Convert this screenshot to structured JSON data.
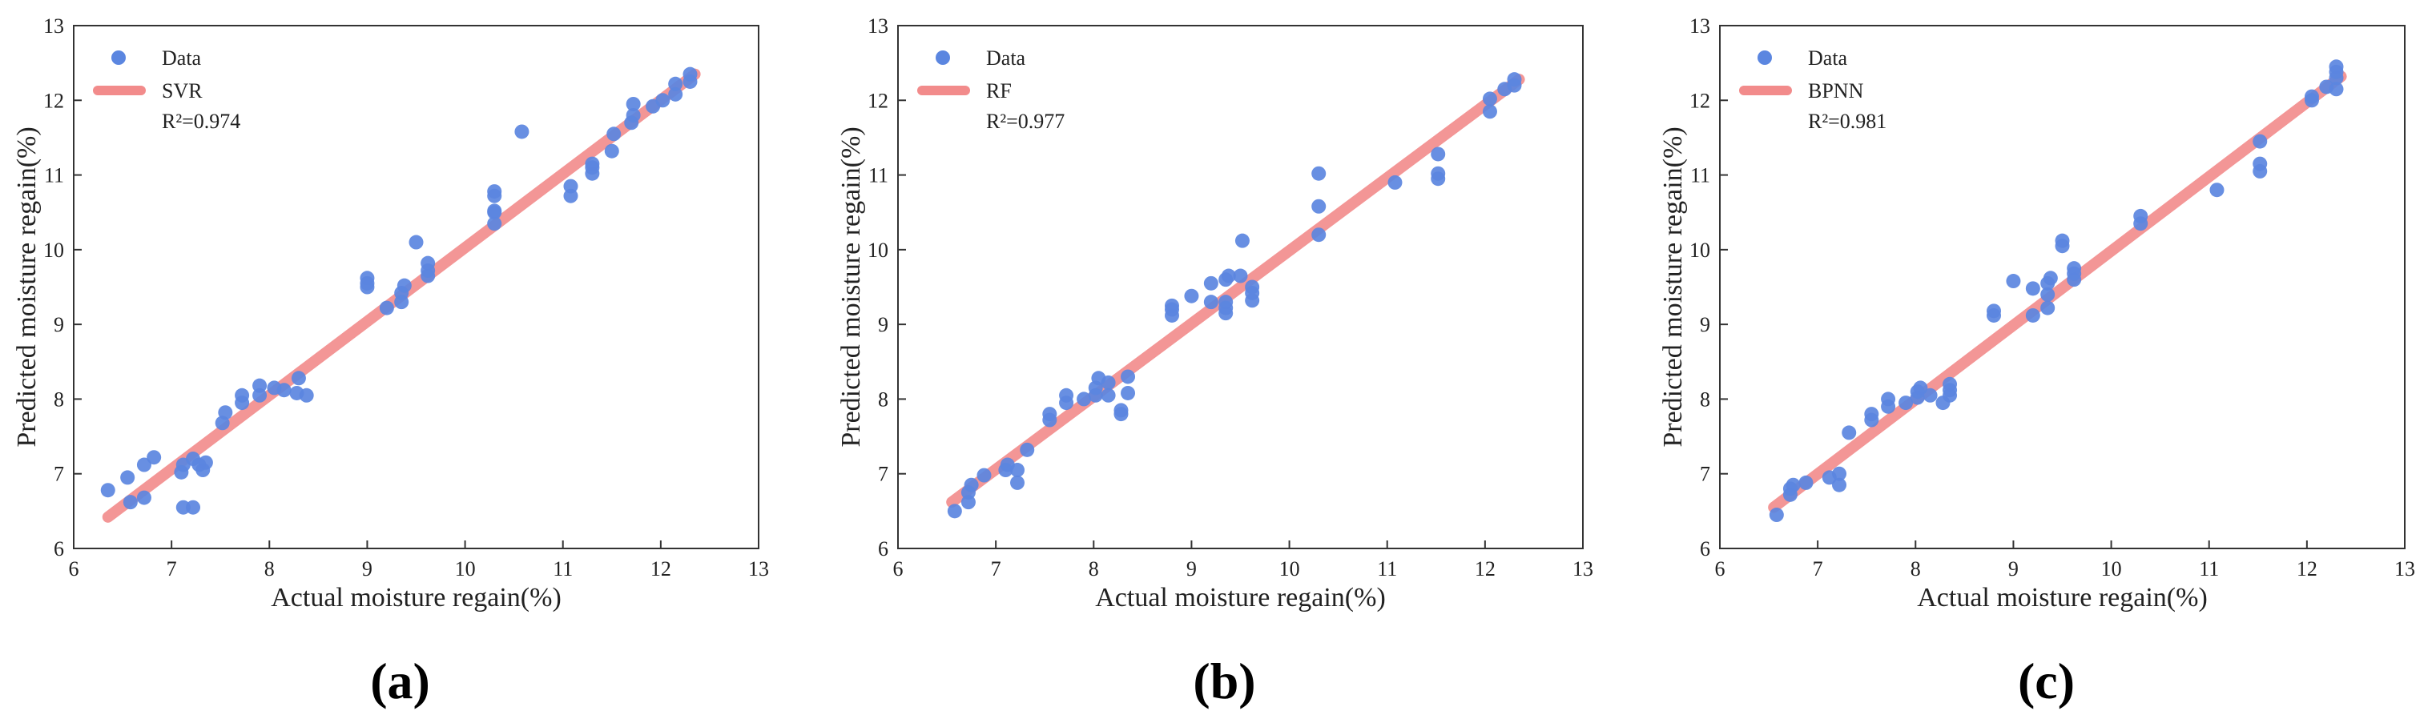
{
  "colors": {
    "point": "#5b86e0",
    "line": "#f28b8b",
    "axis": "#333333",
    "text": "#222222"
  },
  "chart_data": [
    {
      "type": "scatter",
      "panel": "(a)",
      "xlabel": "Actual moisture regain(%)",
      "ylabel": "Predicted moisture regain(%)",
      "xlim": [
        6,
        13
      ],
      "ylim": [
        6,
        13
      ],
      "xticks": [
        6,
        7,
        8,
        9,
        10,
        11,
        12,
        13
      ],
      "yticks": [
        6,
        7,
        8,
        9,
        10,
        11,
        12,
        13
      ],
      "legend": {
        "position": "top-left",
        "data_label": "Data",
        "line_label": "SVR",
        "r2_label": "R²=0.974"
      },
      "fit_line": {
        "x": [
          6.35,
          12.35
        ],
        "y": [
          6.42,
          12.35
        ]
      },
      "points": [
        [
          6.35,
          6.78
        ],
        [
          6.55,
          6.95
        ],
        [
          6.58,
          6.62
        ],
        [
          6.72,
          6.68
        ],
        [
          6.72,
          7.12
        ],
        [
          6.82,
          7.22
        ],
        [
          7.1,
          7.02
        ],
        [
          7.12,
          7.12
        ],
        [
          7.12,
          6.55
        ],
        [
          7.22,
          6.55
        ],
        [
          7.22,
          7.2
        ],
        [
          7.28,
          7.12
        ],
        [
          7.32,
          7.05
        ],
        [
          7.35,
          7.15
        ],
        [
          7.52,
          7.68
        ],
        [
          7.55,
          7.82
        ],
        [
          7.72,
          7.95
        ],
        [
          7.72,
          8.05
        ],
        [
          7.9,
          8.05
        ],
        [
          7.9,
          8.18
        ],
        [
          8.05,
          8.15
        ],
        [
          8.15,
          8.12
        ],
        [
          8.28,
          8.08
        ],
        [
          8.3,
          8.28
        ],
        [
          8.38,
          8.05
        ],
        [
          9.0,
          9.5
        ],
        [
          9.0,
          9.55
        ],
        [
          9.0,
          9.62
        ],
        [
          9.2,
          9.22
        ],
        [
          9.35,
          9.3
        ],
        [
          9.35,
          9.42
        ],
        [
          9.38,
          9.52
        ],
        [
          9.5,
          10.1
        ],
        [
          9.62,
          9.65
        ],
        [
          9.62,
          9.72
        ],
        [
          9.62,
          9.82
        ],
        [
          10.3,
          10.35
        ],
        [
          10.3,
          10.5
        ],
        [
          10.3,
          10.52
        ],
        [
          10.3,
          10.72
        ],
        [
          10.3,
          10.78
        ],
        [
          10.58,
          11.58
        ],
        [
          11.08,
          10.72
        ],
        [
          11.08,
          10.85
        ],
        [
          11.3,
          11.02
        ],
        [
          11.3,
          11.1
        ],
        [
          11.3,
          11.15
        ],
        [
          11.5,
          11.32
        ],
        [
          11.52,
          11.55
        ],
        [
          11.7,
          11.7
        ],
        [
          11.72,
          11.8
        ],
        [
          11.72,
          11.95
        ],
        [
          11.92,
          11.92
        ],
        [
          12.02,
          12.0
        ],
        [
          12.15,
          12.08
        ],
        [
          12.15,
          12.22
        ],
        [
          12.3,
          12.25
        ],
        [
          12.3,
          12.35
        ]
      ]
    },
    {
      "type": "scatter",
      "panel": "(b)",
      "xlabel": "Actual moisture regain(%)",
      "ylabel": "Predicted moisture regain(%)",
      "xlim": [
        6,
        13
      ],
      "ylim": [
        6,
        13
      ],
      "xticks": [
        6,
        7,
        8,
        9,
        10,
        11,
        12,
        13
      ],
      "yticks": [
        6,
        7,
        8,
        9,
        10,
        11,
        12,
        13
      ],
      "legend": {
        "position": "top-left",
        "data_label": "Data",
        "line_label": "RF",
        "r2_label": "R²=0.977"
      },
      "fit_line": {
        "x": [
          6.55,
          12.35
        ],
        "y": [
          6.62,
          12.28
        ]
      },
      "points": [
        [
          6.58,
          6.5
        ],
        [
          6.72,
          6.62
        ],
        [
          6.72,
          6.75
        ],
        [
          6.75,
          6.85
        ],
        [
          6.88,
          6.98
        ],
        [
          7.1,
          7.05
        ],
        [
          7.12,
          7.12
        ],
        [
          7.22,
          6.88
        ],
        [
          7.22,
          7.05
        ],
        [
          7.32,
          7.32
        ],
        [
          7.55,
          7.72
        ],
        [
          7.55,
          7.8
        ],
        [
          7.72,
          7.95
        ],
        [
          7.72,
          8.05
        ],
        [
          7.9,
          8.0
        ],
        [
          8.02,
          8.05
        ],
        [
          8.02,
          8.15
        ],
        [
          8.05,
          8.28
        ],
        [
          8.15,
          8.05
        ],
        [
          8.15,
          8.22
        ],
        [
          8.28,
          7.8
        ],
        [
          8.28,
          7.85
        ],
        [
          8.35,
          8.08
        ],
        [
          8.35,
          8.3
        ],
        [
          8.8,
          9.12
        ],
        [
          8.8,
          9.2
        ],
        [
          8.8,
          9.25
        ],
        [
          9.0,
          9.38
        ],
        [
          9.2,
          9.3
        ],
        [
          9.2,
          9.55
        ],
        [
          9.35,
          9.15
        ],
        [
          9.35,
          9.22
        ],
        [
          9.35,
          9.3
        ],
        [
          9.35,
          9.6
        ],
        [
          9.38,
          9.65
        ],
        [
          9.5,
          9.65
        ],
        [
          9.52,
          10.12
        ],
        [
          9.62,
          9.32
        ],
        [
          9.62,
          9.42
        ],
        [
          9.62,
          9.5
        ],
        [
          10.3,
          10.2
        ],
        [
          10.3,
          10.58
        ],
        [
          10.3,
          11.02
        ],
        [
          11.08,
          10.9
        ],
        [
          11.52,
          10.95
        ],
        [
          11.52,
          11.02
        ],
        [
          11.52,
          11.28
        ],
        [
          12.05,
          11.85
        ],
        [
          12.05,
          12.02
        ],
        [
          12.2,
          12.15
        ],
        [
          12.3,
          12.2
        ],
        [
          12.3,
          12.28
        ]
      ]
    },
    {
      "type": "scatter",
      "panel": "(c)",
      "xlabel": "Actual moisture regain(%)",
      "ylabel": "Predicted moisture regain(%)",
      "xlim": [
        6,
        13
      ],
      "ylim": [
        6,
        13
      ],
      "xticks": [
        6,
        7,
        8,
        9,
        10,
        11,
        12,
        13
      ],
      "yticks": [
        6,
        7,
        8,
        9,
        10,
        11,
        12,
        13
      ],
      "legend": {
        "position": "top-left",
        "data_label": "Data",
        "line_label": "BPNN",
        "r2_label": "R²=0.981"
      },
      "fit_line": {
        "x": [
          6.55,
          12.35
        ],
        "y": [
          6.55,
          12.32
        ]
      },
      "points": [
        [
          6.58,
          6.45
        ],
        [
          6.72,
          6.72
        ],
        [
          6.72,
          6.8
        ],
        [
          6.75,
          6.85
        ],
        [
          6.88,
          6.88
        ],
        [
          7.12,
          6.95
        ],
        [
          7.22,
          6.85
        ],
        [
          7.22,
          7.0
        ],
        [
          7.32,
          7.55
        ],
        [
          7.55,
          7.72
        ],
        [
          7.55,
          7.8
        ],
        [
          7.72,
          7.9
        ],
        [
          7.72,
          8.0
        ],
        [
          7.9,
          7.95
        ],
        [
          8.02,
          8.02
        ],
        [
          8.02,
          8.1
        ],
        [
          8.05,
          8.15
        ],
        [
          8.15,
          8.05
        ],
        [
          8.28,
          7.95
        ],
        [
          8.35,
          8.05
        ],
        [
          8.35,
          8.12
        ],
        [
          8.35,
          8.2
        ],
        [
          8.8,
          9.12
        ],
        [
          8.8,
          9.18
        ],
        [
          9.0,
          9.58
        ],
        [
          9.2,
          9.12
        ],
        [
          9.2,
          9.48
        ],
        [
          9.35,
          9.22
        ],
        [
          9.35,
          9.4
        ],
        [
          9.35,
          9.55
        ],
        [
          9.38,
          9.62
        ],
        [
          9.5,
          10.05
        ],
        [
          9.5,
          10.12
        ],
        [
          9.62,
          9.6
        ],
        [
          9.62,
          9.68
        ],
        [
          9.62,
          9.75
        ],
        [
          10.3,
          10.35
        ],
        [
          10.3,
          10.45
        ],
        [
          11.08,
          10.8
        ],
        [
          11.52,
          11.05
        ],
        [
          11.52,
          11.15
        ],
        [
          11.52,
          11.45
        ],
        [
          12.05,
          12.0
        ],
        [
          12.05,
          12.05
        ],
        [
          12.2,
          12.18
        ],
        [
          12.3,
          12.15
        ],
        [
          12.3,
          12.3
        ],
        [
          12.3,
          12.38
        ],
        [
          12.3,
          12.45
        ]
      ]
    }
  ]
}
